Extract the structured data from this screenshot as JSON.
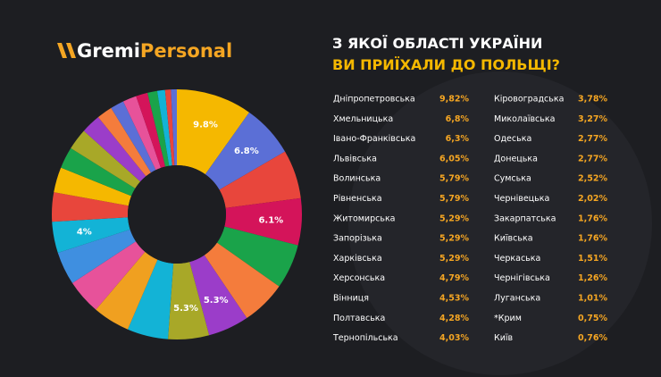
{
  "brand": {
    "first": "Gremi",
    "second": "Personal"
  },
  "chart_data": {
    "type": "donut",
    "title_lines": [
      "З ЯКОЇ ОБЛАСТІ УКРАЇНИ",
      "ВИ ПРИЇХАЛИ ДО ПОЛЬЩІ?"
    ],
    "categories": [
      "Дніпропетровська",
      "Хмельницька",
      "Івано-Франківська",
      "Львівська",
      "Волинська",
      "Рівненська",
      "Житомирська",
      "Запорізька",
      "Харківська",
      "Херсонська",
      "Вінниця",
      "Полтавська",
      "Тернопільська",
      "Кіровоградська",
      "Миколаївська",
      "Одеська",
      "Донецька",
      "Сумська",
      "Чернівецька",
      "Закарпатська",
      "Київська",
      "Черкаська",
      "Чернігівська",
      "Луганська",
      "*Крим",
      "Київ"
    ],
    "values": [
      9.82,
      6.8,
      6.3,
      6.05,
      5.79,
      5.79,
      5.29,
      5.29,
      5.29,
      4.79,
      4.53,
      4.28,
      4.03,
      3.78,
      3.27,
      2.77,
      2.77,
      2.52,
      2.02,
      1.76,
      1.76,
      1.51,
      1.26,
      1.01,
      0.75,
      0.76
    ],
    "value_labels": [
      "9,82%",
      "6,8%",
      "6,3%",
      "6,05%",
      "5,79%",
      "5,79%",
      "5,29%",
      "5,29%",
      "5,29%",
      "4,79%",
      "4,53%",
      "4,28%",
      "4,03%",
      "3,78%",
      "3,27%",
      "2,77%",
      "2,77%",
      "2,52%",
      "2,02%",
      "1,76%",
      "1,76%",
      "1,51%",
      "1,26%",
      "1,01%",
      "0,75%",
      "0,76%"
    ],
    "slice_labels": [
      "9.8%",
      "6.8%",
      null,
      "6.1%",
      null,
      null,
      "5.3%",
      "5.3%",
      null,
      null,
      null,
      null,
      "4%",
      null,
      null,
      null,
      null,
      null,
      null,
      null,
      null,
      null,
      null,
      null,
      null,
      null
    ],
    "colors": [
      "#f5b800",
      "#5b6fd6",
      "#e8463c",
      "#d4145a",
      "#1aa34a",
      "#f47c3c",
      "#9b3dc9",
      "#a8a828",
      "#13b3d6",
      "#f0a020",
      "#e7529a",
      "#3f8fe0",
      "#13b3d6",
      "#e8463c",
      "#f5b800",
      "#1aa34a",
      "#a8a828",
      "#9b3dc9",
      "#f47c3c",
      "#5b6fd6",
      "#e7529a",
      "#d4145a",
      "#1aa34a",
      "#13b3d6",
      "#e8463c",
      "#5b6fd6"
    ]
  }
}
